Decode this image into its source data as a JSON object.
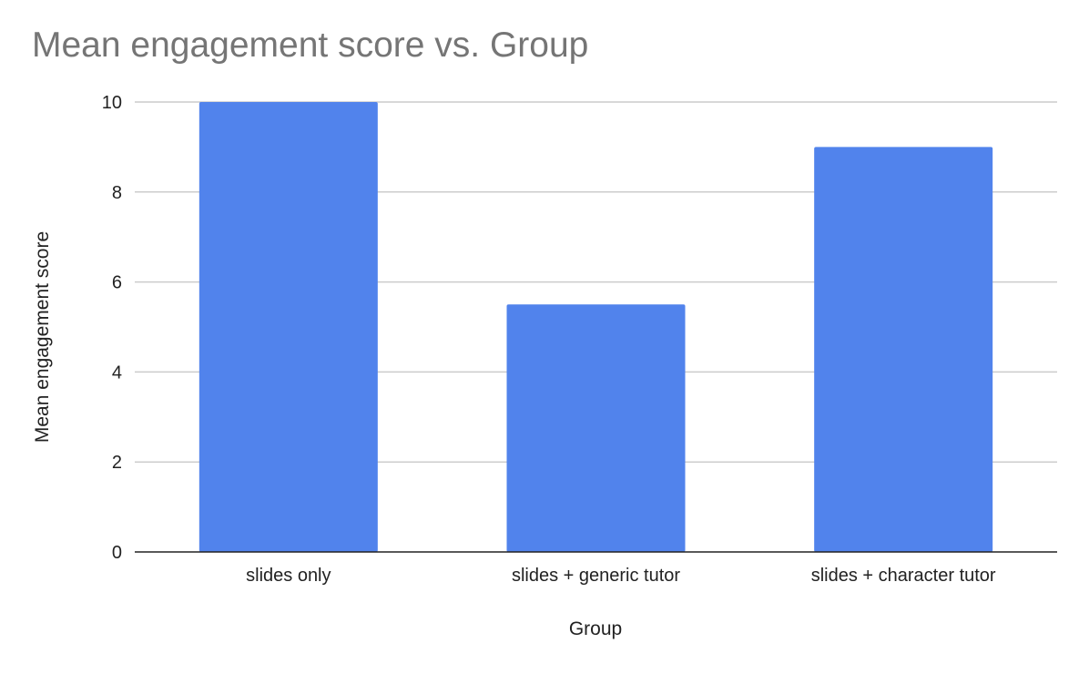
{
  "chart_data": {
    "type": "bar",
    "title": "Mean engagement score vs. Group",
    "xlabel": "Group",
    "ylabel": "Mean engagement score",
    "categories": [
      "slides only",
      "slides + generic tutor",
      "slides + character tutor"
    ],
    "values": [
      10,
      5.5,
      9
    ],
    "ylim": [
      0,
      10
    ],
    "yticks": [
      "0",
      "2",
      "4",
      "6",
      "8",
      "10"
    ],
    "grid": true,
    "legend": "none",
    "bar_color": "#5183ec",
    "gridline_color": "#cccccc",
    "axis_color": "#222222",
    "title_color": "#757575"
  }
}
